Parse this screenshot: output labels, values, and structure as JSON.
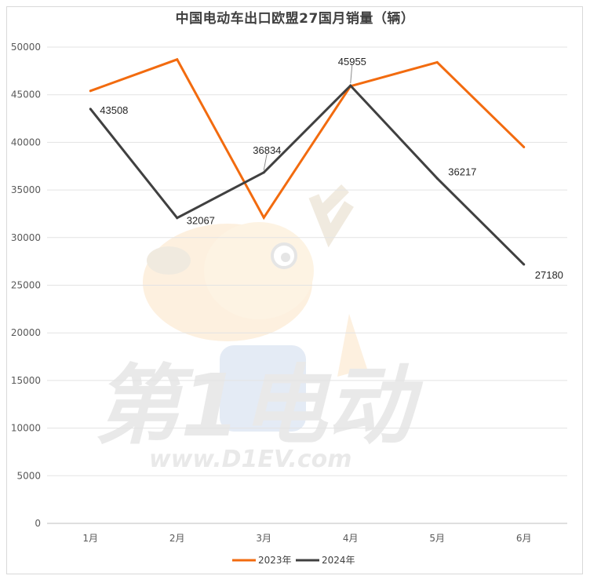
{
  "chart_data": {
    "type": "line",
    "title": "中国电动车出口欧盟27国月销量（辆）",
    "categories": [
      "1月",
      "2月",
      "3月",
      "4月",
      "5月",
      "6月"
    ],
    "ylim": [
      0,
      50000
    ],
    "yticks": [
      0,
      5000,
      10000,
      15000,
      20000,
      25000,
      30000,
      35000,
      40000,
      45000,
      50000
    ],
    "grid": true,
    "legend_position": "bottom",
    "series": [
      {
        "name": "2023年",
        "color": "#f26b0f",
        "values": [
          45400,
          48700,
          32100,
          45900,
          48400,
          39500
        ],
        "labels": []
      },
      {
        "name": "2024年",
        "color": "#404040",
        "values": [
          43508,
          32067,
          36834,
          45955,
          36217,
          27180
        ],
        "labels": [
          "43508",
          "32067",
          "36834",
          "45955",
          "36217",
          "27180"
        ]
      }
    ]
  },
  "watermark": {
    "text": "第1电动",
    "url_text": "www.D1EV.com"
  }
}
